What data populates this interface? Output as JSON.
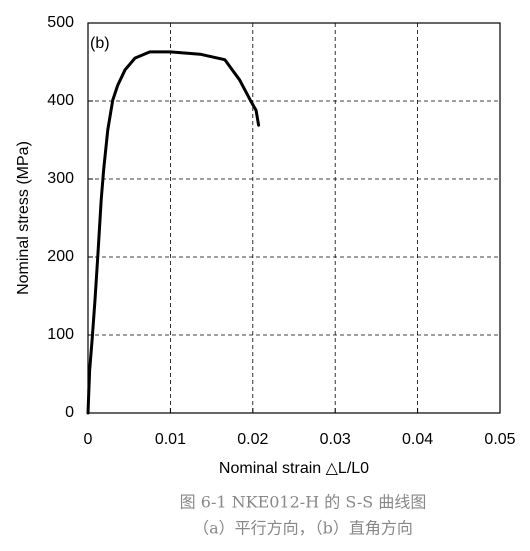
{
  "chart_data": {
    "type": "line",
    "annotation": "(b)",
    "x_label": "Nominal strain  △L/L0",
    "y_label": "Nominal stress  (MPa)",
    "caption": [
      "图 6-1 NKE012-H 的 S-S 曲线图",
      "（a）平行方向，（b）直角方向"
    ],
    "color": "#000000",
    "x": [
      0,
      0.0002,
      0.0005,
      0.00085,
      0.0012,
      0.0016,
      0.0019,
      0.0024,
      0.003,
      0.0036,
      0.0045,
      0.0057,
      0.0075,
      0.01,
      0.0136,
      0.0166,
      0.0184,
      0.0197,
      0.0204,
      0.0207
    ],
    "values": [
      0,
      55,
      94,
      145,
      203,
      273,
      312,
      363,
      401,
      420,
      440,
      455,
      463,
      463,
      460,
      453,
      427,
      401,
      388,
      369
    ],
    "xlim": [
      0,
      0.05
    ],
    "xticks": [
      0,
      0.01,
      0.02,
      0.03,
      0.04,
      0.05
    ],
    "ylim": [
      0,
      500
    ],
    "yticks": [
      0,
      100,
      200,
      300,
      400,
      500
    ],
    "grid": true
  }
}
